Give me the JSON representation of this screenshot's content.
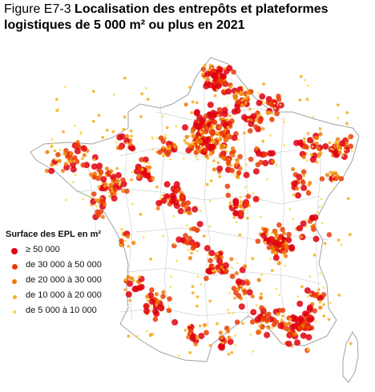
{
  "title": {
    "prefix": "Figure E7-3 ",
    "main": "Localisation des entrepôts et plateformes logistiques de 5 000 m² ou plus en 2021"
  },
  "legend": {
    "title": "Surface des EPL en m²",
    "items": [
      {
        "label": "≥ 50 000",
        "color": "#e0000f"
      },
      {
        "label": "de 30 000 à 50 000",
        "color": "#ea3d06"
      },
      {
        "label": "de 20 000 à 30 000",
        "color": "#f07b07"
      },
      {
        "label": "de 10 000 à 20 000",
        "color": "#f6ad1c"
      },
      {
        "label": "de 5 000 à 10 000",
        "color": "#fcd83a"
      }
    ]
  },
  "map": {
    "country": "France",
    "boundary_color": "#a0a0a0",
    "department_color": "#d2d2d2"
  }
}
